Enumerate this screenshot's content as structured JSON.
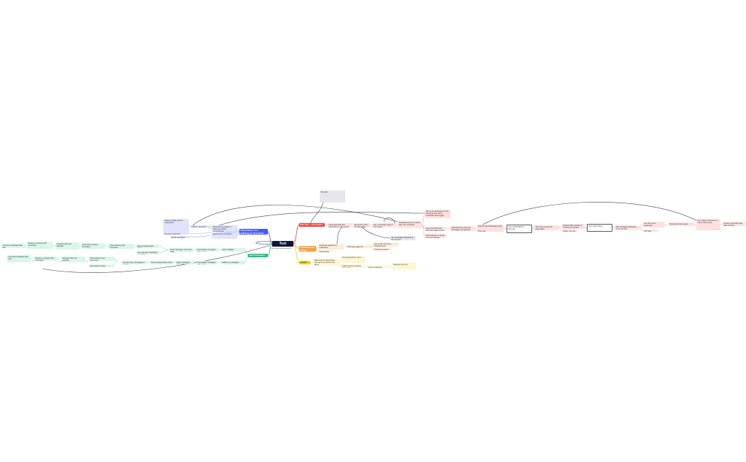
{
  "root": {
    "title": "Text Reminders",
    "subtitle": "Remind yourself about important words & notes"
  },
  "colors": {
    "red": "#ef3b3b",
    "orange": "#f5a343",
    "yellow": "#f2d21b",
    "blue": "#4a5cf0",
    "green": "#20c07a",
    "root": "#0b1736"
  },
  "branches": [
    {
      "label": "Mac Mac + automation (?) tools",
      "color": "red"
    },
    {
      "label": "Automate and native reminders",
      "color": "orange"
    },
    {
      "label": "Useful tools",
      "color": "yellow"
    },
    {
      "label": "Subscribers' List Building for Text Alerts",
      "color": "blue"
    },
    {
      "label": "Text Customers & Users",
      "color": "green"
    }
  ],
  "nodes": [
    "Using shortcuts and automation to set up text reminders on a schedule for yourself on a Mac computer with notes",
    "Send a text from the Messages app with a date and time",
    "Use a reminders app on your phone",
    "Schedule the text to send later from shortcuts",
    "Set up an automation in the Shortcuts app with a scheduled time trigger",
    "Open the Shortcuts app and create a new automation",
    "Automations run at the time you choose",
    "Choose Time of Day as the trigger and pick the time",
    "Add the Send Message action",
    "Type your reminder text and select the recipient",
    "Turn off Ask Before Running",
    "Test it by running the automation",
    "Repeat daily, weekly or monthly as needed",
    "Notes: you can also use the Reminders app on iPhone, iPad and Mac",
    "Sync with iCloud",
    "Text messages delivered at the set time",
    "Use Siri to set reminders",
    "Tip: keep reminders short",
    "Reminders that repeat",
    "Use native reminders on phone with a note",
    "Create a reminder with date and time",
    "Set alert",
    "Reminder appears as notification",
    "Useful tools to send scheduled text reminders to yourself or others",
    "Third party apps for scheduling texts",
    "Use a web service to schedule texts",
    "Check the pricing and limits of each tool",
    "Build a list of subscribers who opt in to receive text alerts",
    "Use keywords for opt in",
    "Collect phone numbers with a form",
    "Send a welcome message after sign up",
    "Segment your list",
    "Always include opt-out instructions",
    "Follow messaging regulations",
    "Send text reminders to customers about appointments",
    "Appointment reminders",
    "Payment reminders",
    "Event reminders",
    "Order updates",
    "Personalize messages with names",
    "Keep messages short and clear",
    "Send at appropriate times",
    "Use two-way messaging to confirm",
    "Track delivery and responses",
    "Automate recurring reminders",
    "Integrate with your calendar",
    "Reduce no-shows with reminders",
    "Customer feedback after visit",
    "Follow-up messages",
    "Measure results"
  ]
}
